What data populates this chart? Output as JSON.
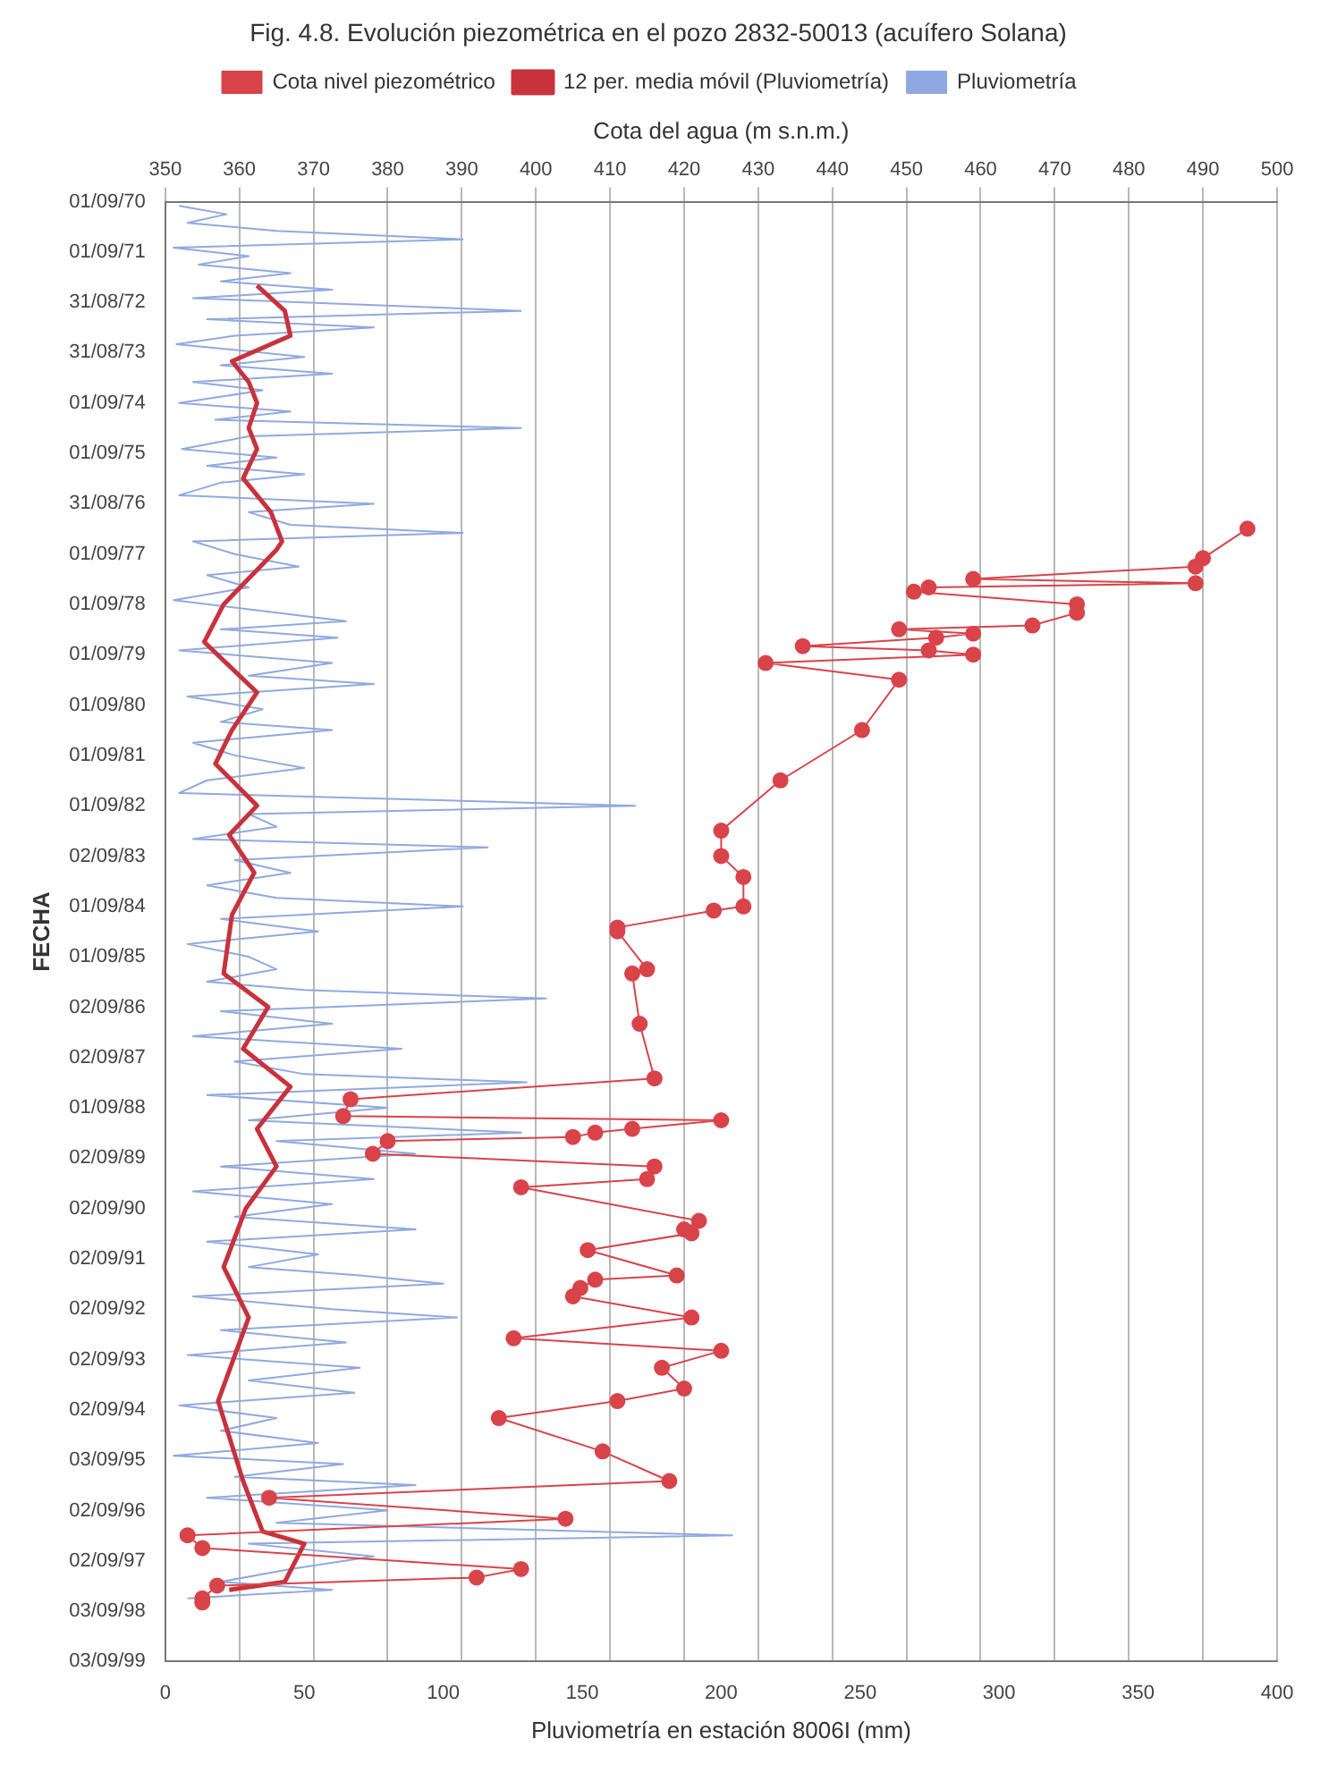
{
  "chart_data": {
    "type": "line",
    "orientation": "horizontal",
    "title": "Fig. 4.8. Evolución piezométrica en el pozo 2832-50013 (acuífero Solana)",
    "xlabel": "Pluviometría en estación 8006I (mm)",
    "x2label": "Cota del agua (m s.n.m.)",
    "ylabel": "FECHA",
    "xlim": [
      0,
      400
    ],
    "xticks": [
      0,
      50,
      100,
      150,
      200,
      250,
      300,
      350,
      400
    ],
    "x2lim": [
      350,
      500
    ],
    "x2ticks": [
      350,
      360,
      370,
      380,
      390,
      400,
      410,
      420,
      430,
      440,
      450,
      460,
      470,
      480,
      490,
      500
    ],
    "ylim": [
      "1999-09-03",
      "1970-09-01"
    ],
    "yticks": [
      {
        "value": "1970-09-01",
        "label": "01/09/70"
      },
      {
        "value": "1971-09-01",
        "label": "01/09/71"
      },
      {
        "value": "1972-08-31",
        "label": "31/08/72"
      },
      {
        "value": "1973-08-31",
        "label": "31/08/73"
      },
      {
        "value": "1974-09-01",
        "label": "01/09/74"
      },
      {
        "value": "1975-09-01",
        "label": "01/09/75"
      },
      {
        "value": "1976-08-31",
        "label": "31/08/76"
      },
      {
        "value": "1977-09-01",
        "label": "01/09/77"
      },
      {
        "value": "1978-09-01",
        "label": "01/09/78"
      },
      {
        "value": "1979-09-01",
        "label": "01/09/79"
      },
      {
        "value": "1980-09-01",
        "label": "01/09/80"
      },
      {
        "value": "1981-09-01",
        "label": "01/09/81"
      },
      {
        "value": "1982-09-01",
        "label": "01/09/82"
      },
      {
        "value": "1983-09-02",
        "label": "02/09/83"
      },
      {
        "value": "1984-09-01",
        "label": "01/09/84"
      },
      {
        "value": "1985-09-01",
        "label": "01/09/85"
      },
      {
        "value": "1986-09-02",
        "label": "02/09/86"
      },
      {
        "value": "1987-09-02",
        "label": "02/09/87"
      },
      {
        "value": "1988-09-01",
        "label": "01/09/88"
      },
      {
        "value": "1989-09-02",
        "label": "02/09/89"
      },
      {
        "value": "1990-09-02",
        "label": "02/09/90"
      },
      {
        "value": "1991-09-02",
        "label": "02/09/91"
      },
      {
        "value": "1992-09-02",
        "label": "02/09/92"
      },
      {
        "value": "1993-09-02",
        "label": "02/09/93"
      },
      {
        "value": "1994-09-02",
        "label": "02/09/94"
      },
      {
        "value": "1995-09-03",
        "label": "03/09/95"
      },
      {
        "value": "1996-09-02",
        "label": "02/09/96"
      },
      {
        "value": "1997-09-02",
        "label": "02/09/97"
      },
      {
        "value": "1998-09-03",
        "label": "03/09/98"
      },
      {
        "value": "1999-09-03",
        "label": "03/09/99"
      }
    ],
    "grid": "x",
    "legend": "top",
    "series": [
      {
        "name": "Cota nivel piezométrico",
        "axis": "x2",
        "color": "#d9434a",
        "marker": "circle",
        "x": [
          "1977-03",
          "1977-10",
          "1977-12",
          "1978-03",
          "1978-04",
          "1978-05",
          "1978-06",
          "1978-09",
          "1978-11",
          "1979-02",
          "1979-03",
          "1979-04",
          "1979-05",
          "1979-07",
          "1979-08",
          "1979-09",
          "1979-11",
          "1980-03",
          "1981-03",
          "1982-03",
          "1983-03",
          "1983-09",
          "1984-02",
          "1984-09",
          "1984-10",
          "1985-02",
          "1985-03",
          "1985-12",
          "1986-01",
          "1987-01",
          "1988-02",
          "1988-07",
          "1988-11",
          "1988-12",
          "1989-02",
          "1989-03",
          "1989-04",
          "1989-05",
          "1989-08",
          "1989-11",
          "1990-02",
          "1990-04",
          "1990-12",
          "1991-02",
          "1991-03",
          "1991-07",
          "1992-01",
          "1992-02",
          "1992-04",
          "1992-06",
          "1992-11",
          "1993-04",
          "1993-07",
          "1993-11",
          "1994-04",
          "1994-07",
          "1994-11",
          "1995-07",
          "1996-02",
          "1996-06",
          "1996-11",
          "1997-03",
          "1997-06",
          "1997-11",
          "1998-01",
          "1998-03",
          "1998-06",
          "1998-07"
        ],
        "values": [
          496,
          490,
          489,
          459,
          489,
          453,
          451,
          473,
          473,
          467,
          449,
          459,
          454,
          436,
          453,
          459,
          431,
          449,
          444,
          433,
          425,
          425,
          428,
          428,
          424,
          411,
          411,
          415,
          413,
          414,
          416,
          375,
          374,
          425,
          413,
          408,
          405,
          380,
          378,
          416,
          415,
          398,
          422,
          420,
          421,
          407,
          419,
          408,
          406,
          405,
          421,
          397,
          425,
          417,
          420,
          411,
          395,
          409,
          418,
          364,
          404,
          353,
          355,
          398,
          392,
          357,
          355,
          355
        ]
      },
      {
        "name": "12 per. media móvil (Pluviometría)",
        "color": "#c8323c",
        "marker": "none",
        "x": [
          "1972-05",
          "1972-11",
          "1973-05",
          "1973-11",
          "1974-04",
          "1974-09",
          "1975-03",
          "1975-08",
          "1976-03",
          "1976-11",
          "1977-06",
          "1977-08",
          "1978-09",
          "1979-06",
          "1980-06",
          "1981-03",
          "1981-11",
          "1982-09",
          "1983-04",
          "1984-01",
          "1984-11",
          "1986-01",
          "1986-09",
          "1987-07",
          "1988-04",
          "1989-02",
          "1989-11",
          "1990-09",
          "1991-11",
          "1992-11",
          "1994-07",
          "1996-02",
          "1997-02",
          "1997-05",
          "1998-02",
          "1998-04"
        ],
        "values": [
          33,
          43,
          45,
          24,
          30,
          33,
          30,
          33,
          28,
          38,
          42,
          40,
          21,
          14,
          33,
          24,
          18,
          33,
          23,
          32,
          24,
          21,
          37,
          28,
          45,
          33,
          40,
          29,
          21,
          30,
          19,
          28,
          35,
          50,
          43,
          23
        ]
      },
      {
        "name": "Pluviometría",
        "color": "#8fa9e0",
        "marker": "none",
        "x": [
          "1970-10",
          "1970-12",
          "1971-02",
          "1971-04",
          "1971-06",
          "1971-08",
          "1971-10",
          "1971-12",
          "1972-02",
          "1972-04",
          "1972-06",
          "1972-08",
          "1972-11",
          "1973-01",
          "1973-03",
          "1973-05",
          "1973-07",
          "1973-10",
          "1973-12",
          "1974-02",
          "1974-04",
          "1974-06",
          "1974-09",
          "1974-11",
          "1975-01",
          "1975-03",
          "1975-05",
          "1975-08",
          "1975-10",
          "1975-12",
          "1976-02",
          "1976-04",
          "1976-07",
          "1976-09",
          "1976-11",
          "1977-02",
          "1977-04",
          "1977-06",
          "1977-09",
          "1977-12",
          "1978-02",
          "1978-05",
          "1978-08",
          "1978-11",
          "1979-01",
          "1979-03",
          "1979-05",
          "1979-08",
          "1979-11",
          "1980-02",
          "1980-04",
          "1980-07",
          "1980-10",
          "1981-01",
          "1981-03",
          "1981-06",
          "1981-09",
          "1981-12",
          "1982-03",
          "1982-06",
          "1982-09",
          "1982-11",
          "1983-02",
          "1983-05",
          "1983-07",
          "1983-10",
          "1984-01",
          "1984-04",
          "1984-07",
          "1984-09",
          "1984-12",
          "1985-03",
          "1985-06",
          "1985-09",
          "1985-12",
          "1986-03",
          "1986-05",
          "1986-07",
          "1986-10",
          "1987-01",
          "1987-04",
          "1987-07",
          "1987-10",
          "1988-01",
          "1988-03",
          "1988-06",
          "1988-09",
          "1988-12",
          "1989-03",
          "1989-05",
          "1989-08",
          "1989-11",
          "1990-02",
          "1990-05",
          "1990-08",
          "1990-11",
          "1991-02",
          "1991-05",
          "1991-08",
          "1991-11",
          "1992-01",
          "1992-03",
          "1992-06",
          "1992-09",
          "1992-11",
          "1993-02",
          "1993-05",
          "1993-08",
          "1993-11",
          "1994-02",
          "1994-05",
          "1994-08",
          "1994-11",
          "1995-02",
          "1995-05",
          "1995-08",
          "1995-10",
          "1996-01",
          "1996-03",
          "1996-06",
          "1996-09",
          "1996-12",
          "1997-03",
          "1997-05",
          "1997-08",
          "1997-11",
          "1998-02",
          "1998-04",
          "1998-06"
        ],
        "values": [
          5,
          22,
          8,
          40,
          107,
          3,
          30,
          12,
          45,
          20,
          60,
          10,
          128,
          15,
          75,
          25,
          4,
          50,
          20,
          60,
          10,
          35,
          5,
          45,
          18,
          128,
          30,
          6,
          40,
          15,
          50,
          20,
          5,
          75,
          30,
          45,
          107,
          10,
          25,
          48,
          15,
          30,
          3,
          40,
          65,
          20,
          62,
          5,
          60,
          30,
          75,
          8,
          35,
          20,
          60,
          10,
          25,
          50,
          15,
          5,
          169,
          30,
          40,
          10,
          116,
          25,
          45,
          15,
          40,
          107,
          20,
          55,
          8,
          30,
          40,
          15,
          50,
          137,
          20,
          60,
          10,
          85,
          25,
          50,
          130,
          15,
          80,
          30,
          128,
          40,
          90,
          20,
          75,
          10,
          60,
          25,
          90,
          15,
          55,
          30,
          70,
          100,
          10,
          60,
          105,
          20,
          65,
          8,
          70,
          30,
          68,
          5,
          40,
          20,
          55,
          3,
          64,
          25,
          90,
          15,
          80,
          40,
          204,
          30,
          75,
          45,
          20,
          60,
          8
        ]
      }
    ]
  }
}
